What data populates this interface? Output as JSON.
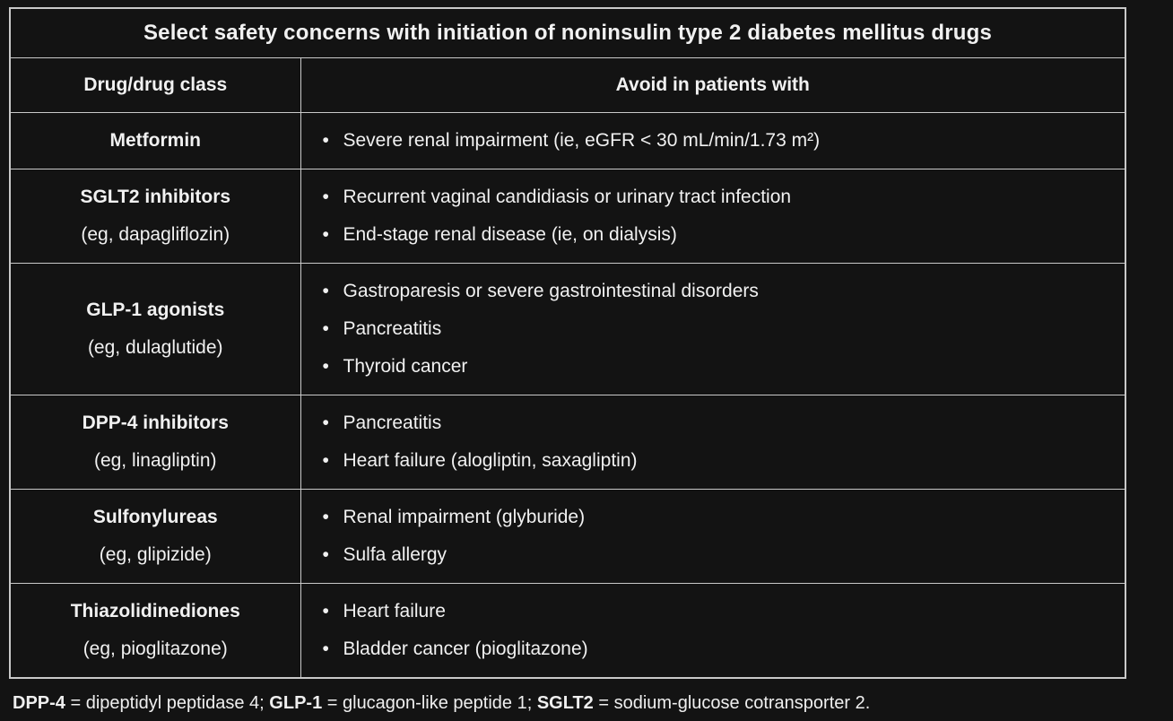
{
  "page": {
    "background": "#131313",
    "border_color": "#c9c9c9",
    "text_color": "#f1f1f1"
  },
  "icons": {
    "bullet": "•"
  },
  "table": {
    "title": "Select safety concerns with initiation of noninsulin type 2 diabetes mellitus drugs",
    "columns": [
      "Drug/drug class",
      "Avoid in patients with"
    ],
    "rows": [
      {
        "drug": "Metformin",
        "example": "",
        "items": [
          "Severe renal impairment (ie, eGFR < 30 mL/min/1.73 m²)"
        ]
      },
      {
        "drug": "SGLT2 inhibitors",
        "example": "(eg, dapagliflozin)",
        "items": [
          "Recurrent vaginal candidiasis or urinary tract infection",
          "End-stage renal disease (ie, on dialysis)"
        ]
      },
      {
        "drug": "GLP-1 agonists",
        "example": "(eg, dulaglutide)",
        "items": [
          "Gastroparesis or severe gastrointestinal disorders",
          "Pancreatitis",
          "Thyroid cancer"
        ]
      },
      {
        "drug": "DPP-4 inhibitors",
        "example": "(eg, linagliptin)",
        "items": [
          "Pancreatitis",
          "Heart failure (alogliptin, saxagliptin)"
        ]
      },
      {
        "drug": "Sulfonylureas",
        "example": "(eg, glipizide)",
        "items": [
          "Renal impairment (glyburide)",
          "Sulfa allergy"
        ]
      },
      {
        "drug": "Thiazolidinediones",
        "example": "(eg, pioglitazone)",
        "items": [
          "Heart failure",
          "Bladder cancer (pioglitazone)"
        ]
      }
    ]
  },
  "footnote": {
    "segments": [
      {
        "text": "DPP-4",
        "bold": true
      },
      {
        "text": " = dipeptidyl peptidase 4; ",
        "bold": false
      },
      {
        "text": "GLP-1",
        "bold": true
      },
      {
        "text": " = glucagon-like peptide 1; ",
        "bold": false
      },
      {
        "text": "SGLT2",
        "bold": true
      },
      {
        "text": " = sodium-glucose cotransporter 2.",
        "bold": false
      }
    ]
  }
}
